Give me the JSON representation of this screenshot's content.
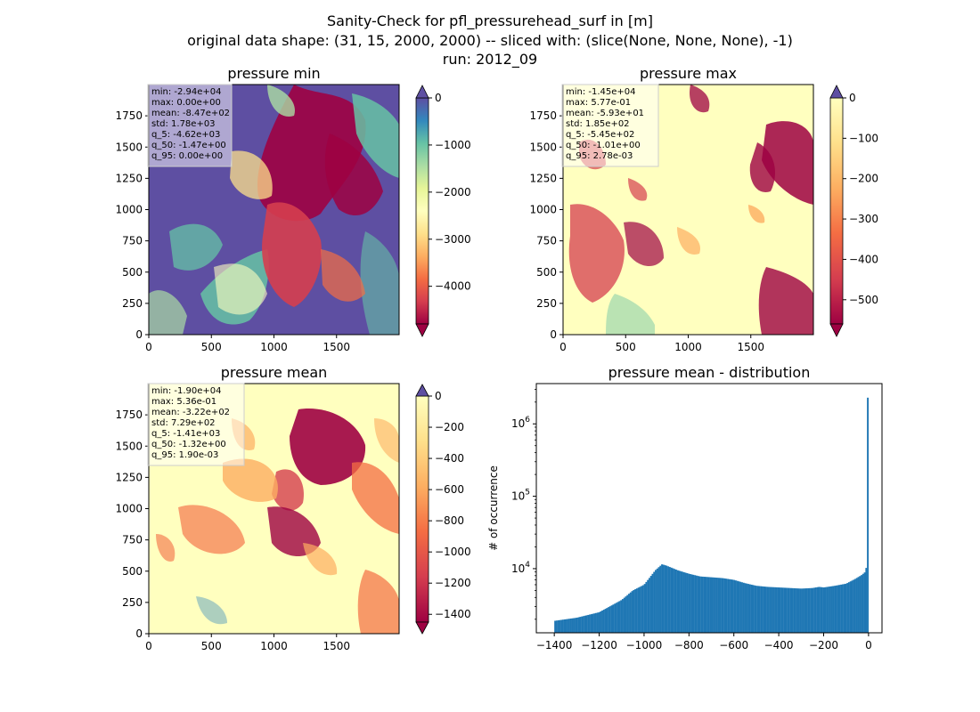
{
  "figure": {
    "title_lines": [
      "Sanity-Check for pfl_pressurehead_surf in [m]",
      "original data shape: (31, 15, 2000, 2000) -- sliced with: (slice(None, None, None), -1)",
      "run: 2012_09"
    ]
  },
  "chart_data": [
    {
      "type": "heatmap",
      "id": "min",
      "title": "pressure min",
      "colormap": "Spectral",
      "extend": "both",
      "x_ticks": [
        "0",
        "500",
        "1000",
        "1500"
      ],
      "y_ticks": [
        "0",
        "250",
        "500",
        "750",
        "1000",
        "1250",
        "1500",
        "1750"
      ],
      "xlim": [
        0,
        2000
      ],
      "ylim": [
        0,
        2000
      ],
      "vmin": -4800,
      "vmax": 0,
      "colorbar_ticks": [
        {
          "v": 0,
          "label": "0"
        },
        {
          "v": -1000,
          "label": "−1000"
        },
        {
          "v": -2000,
          "label": "−2000"
        },
        {
          "v": -3000,
          "label": "−3000"
        },
        {
          "v": -4000,
          "label": "−4000"
        }
      ],
      "stats": [
        "min: -2.94e+04",
        "max: 0.00e+00",
        "mean: -8.47e+02",
        "std: 1.78e+03",
        "q_5: -4.62e+03",
        "q_50: -1.47e+00",
        "q_95: 0.00e+00"
      ]
    },
    {
      "type": "heatmap",
      "id": "max",
      "title": "pressure max",
      "colormap": "Spectral",
      "extend": "both",
      "x_ticks": [
        "0",
        "500",
        "1000",
        "1500"
      ],
      "y_ticks": [
        "0",
        "250",
        "500",
        "750",
        "1000",
        "1250",
        "1500",
        "1750"
      ],
      "xlim": [
        0,
        2000
      ],
      "ylim": [
        0,
        2000
      ],
      "vmin": -560,
      "vmax": 0,
      "colorbar_ticks": [
        {
          "v": 0,
          "label": "0"
        },
        {
          "v": -100,
          "label": "−100"
        },
        {
          "v": -200,
          "label": "−200"
        },
        {
          "v": -300,
          "label": "−300"
        },
        {
          "v": -400,
          "label": "−400"
        },
        {
          "v": -500,
          "label": "−500"
        }
      ],
      "stats": [
        "min: -1.45e+04",
        "max: 5.77e-01",
        "mean: -5.93e+01",
        "std: 1.85e+02",
        "q_5: -5.45e+02",
        "q_50: -1.01e+00",
        "q_95: 2.78e-03"
      ]
    },
    {
      "type": "heatmap",
      "id": "mean",
      "title": "pressure mean",
      "colormap": "Spectral",
      "extend": "both",
      "x_ticks": [
        "0",
        "500",
        "1000",
        "1500"
      ],
      "y_ticks": [
        "0",
        "250",
        "500",
        "750",
        "1000",
        "1250",
        "1500",
        "1750"
      ],
      "xlim": [
        0,
        2000
      ],
      "ylim": [
        0,
        2000
      ],
      "vmin": -1450,
      "vmax": 0,
      "colorbar_ticks": [
        {
          "v": 0,
          "label": "0"
        },
        {
          "v": -200,
          "label": "−200"
        },
        {
          "v": -400,
          "label": "−400"
        },
        {
          "v": -600,
          "label": "−600"
        },
        {
          "v": -800,
          "label": "−800"
        },
        {
          "v": -1000,
          "label": "−1000"
        },
        {
          "v": -1200,
          "label": "−1200"
        },
        {
          "v": -1400,
          "label": "−1400"
        }
      ],
      "stats": [
        "min: -1.90e+04",
        "max: 5.36e-01",
        "mean: -3.22e+02",
        "std: 7.29e+02",
        "q_5: -1.41e+03",
        "q_50: -1.32e+00",
        "q_95: 1.90e-03"
      ]
    },
    {
      "type": "bar",
      "id": "hist",
      "title": "pressure mean - distribution",
      "ylabel": "# of occurrence",
      "y_scale": "log",
      "color": "#1f77b4",
      "xlim": [
        -1480,
        60
      ],
      "ylim": [
        1300,
        3600000
      ],
      "x_ticks": [
        {
          "v": -1400,
          "label": "−1400"
        },
        {
          "v": -1200,
          "label": "−1200"
        },
        {
          "v": -1000,
          "label": "−1000"
        },
        {
          "v": -800,
          "label": "−800"
        },
        {
          "v": -600,
          "label": "−600"
        },
        {
          "v": -400,
          "label": "−400"
        },
        {
          "v": -200,
          "label": "−200"
        },
        {
          "v": 0,
          "label": "0"
        }
      ],
      "y_ticks": [
        {
          "v": 10000,
          "base": "10",
          "exp": "4"
        },
        {
          "v": 100000,
          "base": "10",
          "exp": "5"
        },
        {
          "v": 1000000,
          "base": "10",
          "exp": "6"
        }
      ],
      "x_points": [
        -1400,
        -1300,
        -1200,
        -1100,
        -1050,
        -1000,
        -950,
        -920,
        -900,
        -850,
        -800,
        -750,
        -700,
        -650,
        -600,
        -550,
        -500,
        -450,
        -400,
        -350,
        -300,
        -250,
        -220,
        -200,
        -150,
        -100,
        -60,
        -30,
        -15,
        -8,
        -4,
        -2,
        0
      ],
      "y_points": [
        1900,
        2100,
        2500,
        3700,
        5000,
        6000,
        9500,
        11500,
        11000,
        9500,
        8500,
        7800,
        7600,
        7400,
        7000,
        6300,
        5800,
        5600,
        5500,
        5400,
        5300,
        5400,
        5600,
        5500,
        5800,
        6200,
        7200,
        8200,
        9000,
        11000,
        15000,
        28000,
        2300000
      ]
    }
  ]
}
